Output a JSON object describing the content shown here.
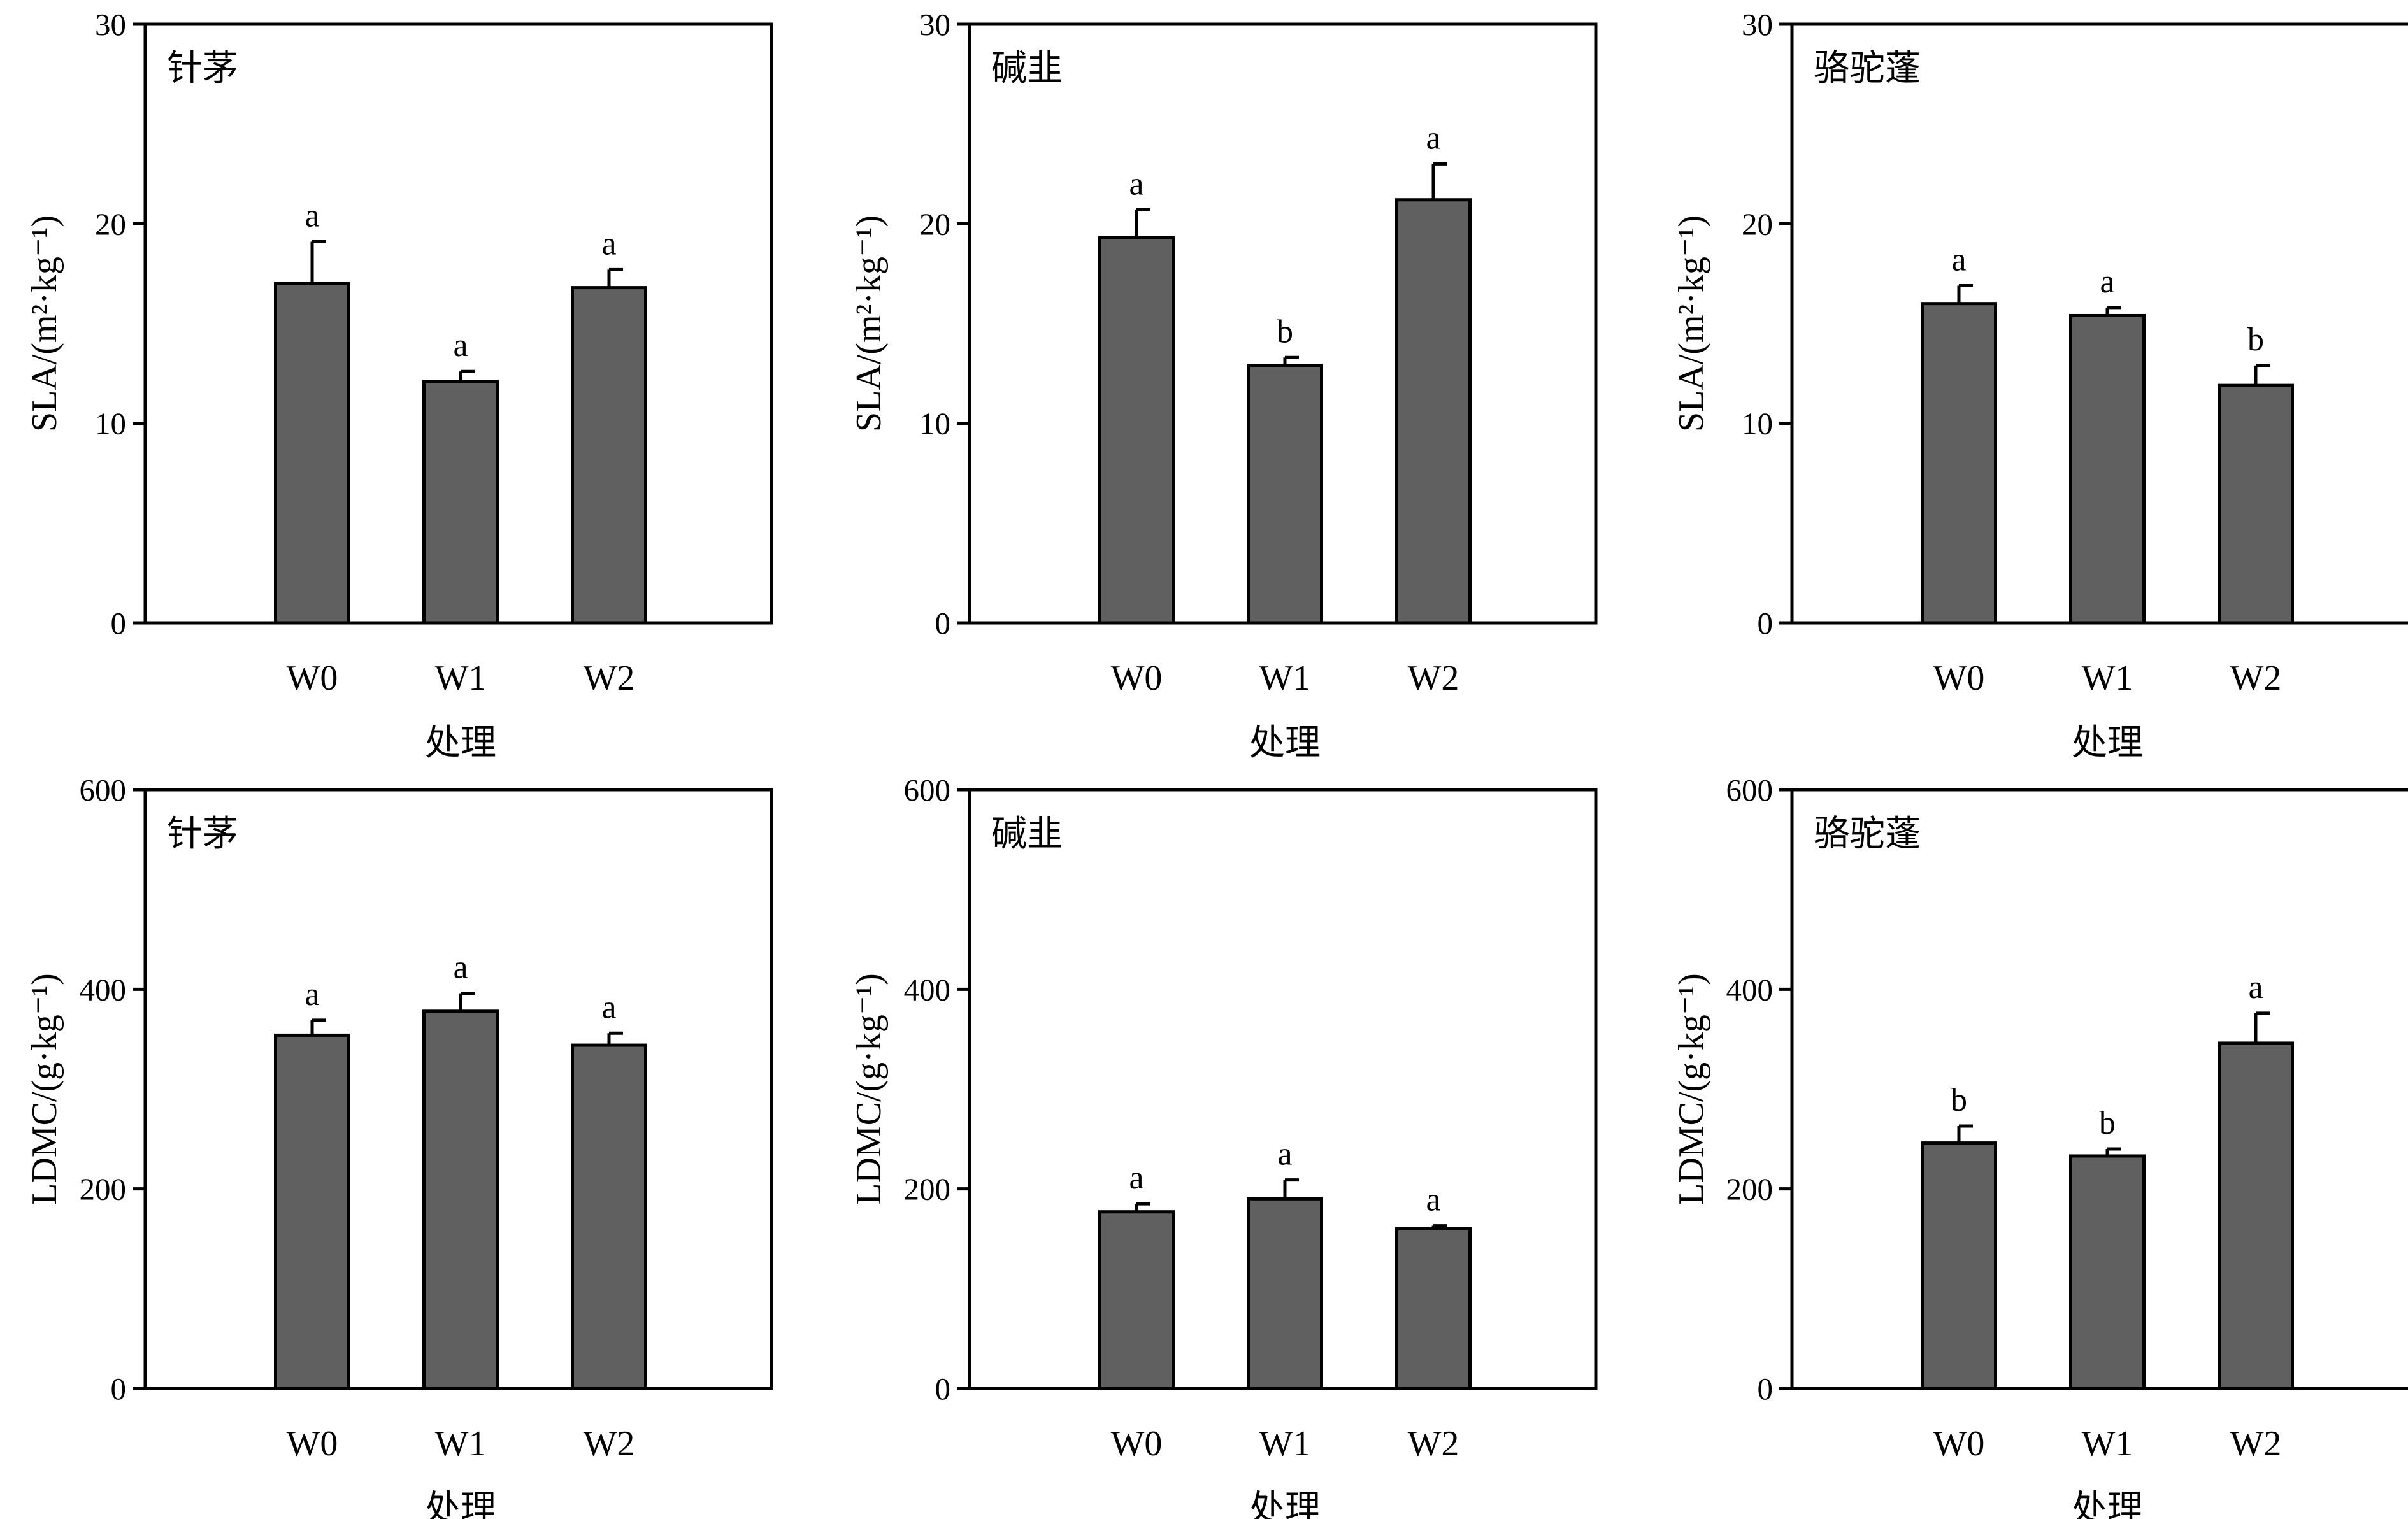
{
  "colors": {
    "bar": "#606060",
    "axis": "#000000",
    "background": "#ffffff"
  },
  "chart_data": [
    {
      "type": "bar",
      "title": "针茅",
      "xlabel": "处理",
      "ylabel": "SLA/(m²·kg⁻¹)",
      "ylim": [
        0,
        30
      ],
      "yticks": [
        0,
        10,
        20,
        30
      ],
      "categories": [
        "W0",
        "W1",
        "W2"
      ],
      "values": [
        17.0,
        12.1,
        16.8
      ],
      "errors": [
        2.1,
        0.5,
        0.9
      ],
      "significance": [
        "a",
        "a",
        "a"
      ]
    },
    {
      "type": "bar",
      "title": "碱韭",
      "xlabel": "处理",
      "ylabel": "SLA/(m²·kg⁻¹)",
      "ylim": [
        0,
        30
      ],
      "yticks": [
        0,
        10,
        20,
        30
      ],
      "categories": [
        "W0",
        "W1",
        "W2"
      ],
      "values": [
        19.3,
        12.9,
        21.2
      ],
      "errors": [
        1.4,
        0.4,
        1.8
      ],
      "significance": [
        "a",
        "b",
        "a"
      ]
    },
    {
      "type": "bar",
      "title": "骆驼蓬",
      "xlabel": "处理",
      "ylabel": "SLA/(m²·kg⁻¹)",
      "ylim": [
        0,
        30
      ],
      "yticks": [
        0,
        10,
        20,
        30
      ],
      "categories": [
        "W0",
        "W1",
        "W2"
      ],
      "values": [
        16.0,
        15.4,
        11.9
      ],
      "errors": [
        0.9,
        0.4,
        1.0
      ],
      "significance": [
        "a",
        "a",
        "b"
      ]
    },
    {
      "type": "bar",
      "title": "针茅",
      "xlabel": "处理",
      "ylabel": "LDMC/(g·kg⁻¹)",
      "ylim": [
        0,
        600
      ],
      "yticks": [
        0,
        200,
        400,
        600
      ],
      "categories": [
        "W0",
        "W1",
        "W2"
      ],
      "values": [
        354,
        378,
        344
      ],
      "errors": [
        15,
        18,
        12
      ],
      "significance": [
        "a",
        "a",
        "a"
      ]
    },
    {
      "type": "bar",
      "title": "碱韭",
      "xlabel": "处理",
      "ylabel": "LDMC/(g·kg⁻¹)",
      "ylim": [
        0,
        600
      ],
      "yticks": [
        0,
        200,
        400,
        600
      ],
      "categories": [
        "W0",
        "W1",
        "W2"
      ],
      "values": [
        177,
        190,
        160
      ],
      "errors": [
        8,
        19,
        3
      ],
      "significance": [
        "a",
        "a",
        "a"
      ]
    },
    {
      "type": "bar",
      "title": "骆驼蓬",
      "xlabel": "处理",
      "ylabel": "LDMC/(g·kg⁻¹)",
      "ylim": [
        0,
        600
      ],
      "yticks": [
        0,
        200,
        400,
        600
      ],
      "categories": [
        "W0",
        "W1",
        "W2"
      ],
      "values": [
        246,
        233,
        346
      ],
      "errors": [
        17,
        7,
        30
      ],
      "significance": [
        "b",
        "b",
        "a"
      ]
    }
  ]
}
